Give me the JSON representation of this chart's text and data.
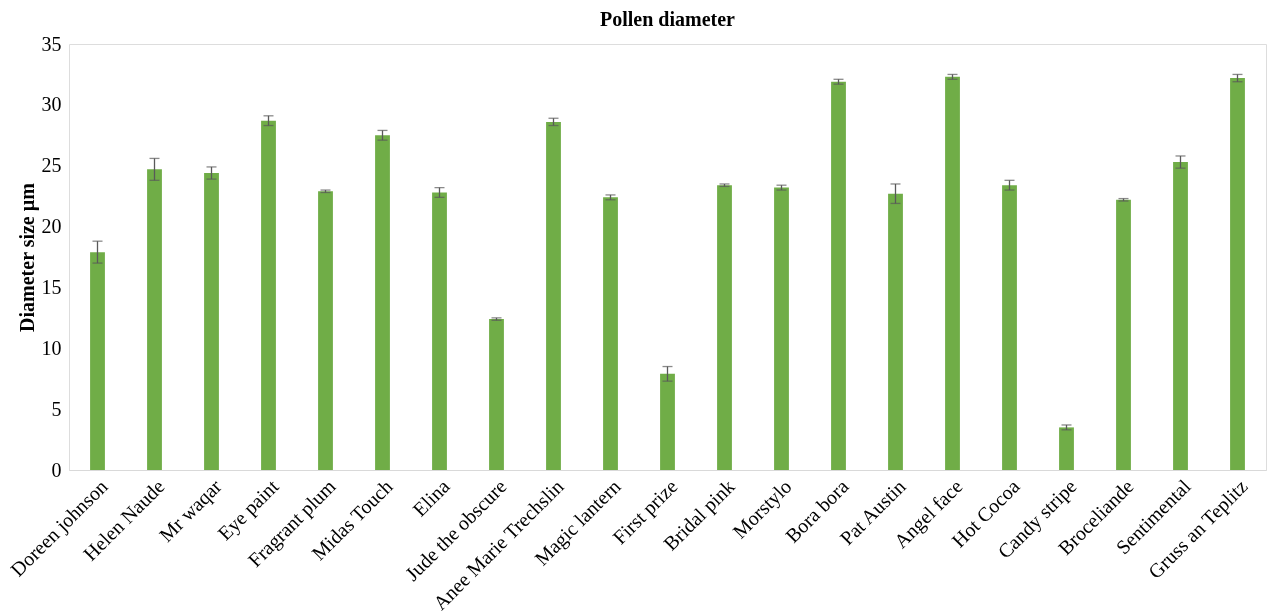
{
  "chart_data": {
    "type": "bar",
    "title": "Pollen diameter",
    "ylabel": "Diameter size µm",
    "categories": [
      "Doreen johnson",
      "Helen Naude",
      "Mr waqar",
      "Eye paint",
      "Fragrant plum",
      "Midas Touch",
      "Elina",
      "Jude the obscure",
      "Anee Marie Trechslin",
      "Magic lantern",
      "First prize",
      "Bridal pink",
      "Morstylo",
      "Bora bora",
      "Pat Austin",
      "Angel face",
      "Hot Cocoa",
      "Candy stripe",
      "Broceliande",
      "Sentimental",
      "Gruss an Teplitz"
    ],
    "values": [
      17.9,
      24.7,
      24.4,
      28.7,
      22.9,
      27.5,
      22.8,
      12.4,
      28.6,
      22.4,
      7.9,
      23.4,
      23.2,
      31.9,
      22.7,
      32.3,
      23.4,
      3.5,
      22.2,
      25.3,
      32.2
    ],
    "errors": [
      0.9,
      0.9,
      0.5,
      0.4,
      0.1,
      0.4,
      0.4,
      0.1,
      0.3,
      0.2,
      0.6,
      0.1,
      0.2,
      0.2,
      0.8,
      0.2,
      0.4,
      0.2,
      0.1,
      0.5,
      0.3
    ],
    "color": "#70ad47",
    "ylim": [
      0,
      35
    ],
    "yticks": [
      0,
      5,
      10,
      15,
      20,
      25,
      30,
      35
    ],
    "grid": false
  }
}
